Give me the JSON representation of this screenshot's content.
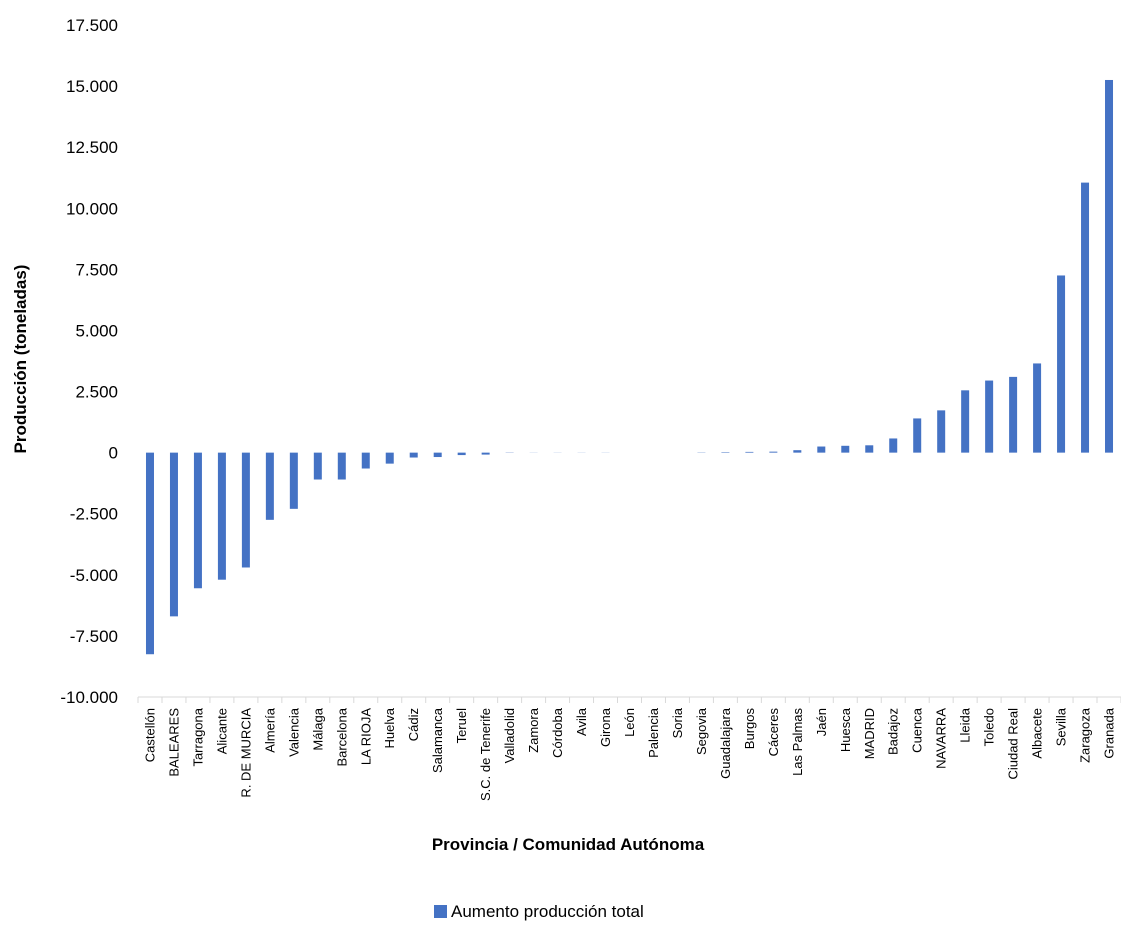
{
  "chart_data": {
    "type": "bar",
    "title": "",
    "xlabel": "Provincia / Comunidad Autónoma",
    "ylabel": "Producción (toneladas)",
    "ylim": [
      -10000,
      17500
    ],
    "yticks": [
      -10000,
      -7500,
      -5000,
      -2500,
      0,
      2500,
      5000,
      7500,
      10000,
      12500,
      15000,
      17500
    ],
    "ytick_labels": [
      "-10.000",
      "-7.500",
      "-5.000",
      "-2.500",
      "0",
      "2.500",
      "5.000",
      "7.500",
      "10.000",
      "12.500",
      "15.000",
      "17.500"
    ],
    "grid": false,
    "legend": "bottom",
    "categories": [
      "Castellón",
      "BALEARES",
      "Tarragona",
      "Alicante",
      "R. DE MURCIA",
      "Almería",
      "Valencia",
      "Málaga",
      "Barcelona",
      "LA RIOJA",
      "Huelva",
      "Cádiz",
      "Salamanca",
      "Teruel",
      "S.C. de Tenerife",
      "Valladolid",
      "Zamora",
      "Córdoba",
      "Avila",
      "Girona",
      "León",
      "Palencia",
      "Soria",
      "Segovia",
      "Guadalajara",
      "Burgos",
      "Cáceres",
      "Las Palmas",
      "Jaén",
      "Huesca",
      "MADRID",
      "Badajoz",
      "Cuenca",
      "NAVARRA",
      "Lleida",
      "Toledo",
      "Ciudad Real",
      "Albacete",
      "Sevilla",
      "Zaragoza",
      "Granada"
    ],
    "series": [
      {
        "name": "Aumento producción total",
        "color": "#4472C4",
        "values": [
          -8250,
          -6700,
          -5550,
          -5200,
          -4700,
          -2750,
          -2300,
          -1100,
          -1100,
          -650,
          -450,
          -200,
          -180,
          -100,
          -80,
          -10,
          -5,
          -5,
          -5,
          -5,
          0,
          0,
          0,
          10,
          20,
          30,
          40,
          100,
          250,
          280,
          300,
          580,
          1400,
          1730,
          2550,
          2950,
          3100,
          3650,
          7250,
          11050,
          15250
        ]
      }
    ]
  }
}
